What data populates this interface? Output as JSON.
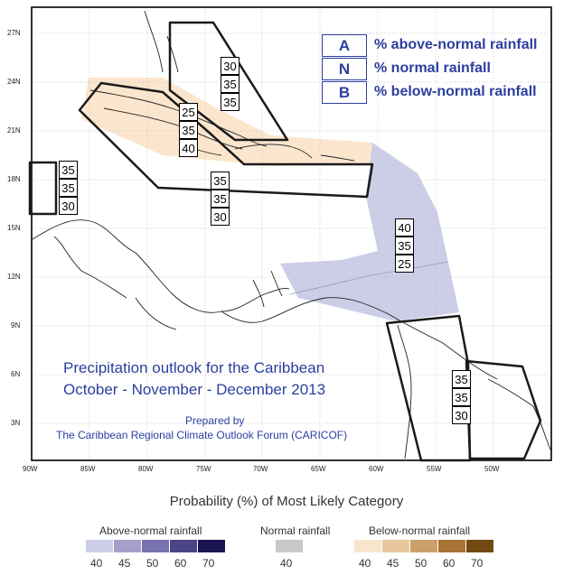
{
  "legend_keys": [
    {
      "letter": "A",
      "text": "% above-normal rainfall"
    },
    {
      "letter": "N",
      "text": "% normal rainfall"
    },
    {
      "letter": "B",
      "text": "% below-normal rainfall"
    }
  ],
  "title_line1": "Precipitation outlook for the Caribbean",
  "title_line2": "October - November - December 2013",
  "prepared_by": "Prepared by",
  "forum": "The Caribbean Regional Climate Outlook Forum (CARICOF)",
  "zones": [
    {
      "name": "bahamas",
      "values": [
        "30",
        "35",
        "35"
      ]
    },
    {
      "name": "cuba",
      "values": [
        "25",
        "35",
        "40"
      ]
    },
    {
      "name": "belize",
      "values": [
        "35",
        "35",
        "30"
      ]
    },
    {
      "name": "greater-antilles",
      "values": [
        "35",
        "35",
        "30"
      ]
    },
    {
      "name": "eastern-caribbean",
      "values": [
        "40",
        "35",
        "25"
      ]
    },
    {
      "name": "guianas",
      "values": [
        "35",
        "35",
        "30"
      ]
    }
  ],
  "lat_ticks": [
    "27N",
    "24N",
    "21N",
    "18N",
    "15N",
    "12N",
    "9N",
    "6N",
    "3N"
  ],
  "lon_ticks": [
    "90W",
    "85W",
    "80W",
    "75W",
    "70W",
    "65W",
    "60W",
    "55W",
    "50W"
  ],
  "legend_title": "Probability (%) of Most Likely Category",
  "groups": {
    "above": {
      "title": "Above-normal rainfall",
      "levels": [
        "40",
        "45",
        "50",
        "60",
        "70"
      ],
      "colors": [
        "#cccde6",
        "#a4a0cb",
        "#7873ae",
        "#4b4587",
        "#1a1550"
      ]
    },
    "normal": {
      "title": "Normal rainfall",
      "levels": [
        "40"
      ],
      "colors": [
        "#c8c8c8"
      ]
    },
    "below": {
      "title": "Below-normal rainfall",
      "levels": [
        "40",
        "45",
        "50",
        "60",
        "70"
      ],
      "colors": [
        "#f8e6cc",
        "#e8c79c",
        "#cd9f6a",
        "#a87536",
        "#734a13"
      ]
    }
  }
}
